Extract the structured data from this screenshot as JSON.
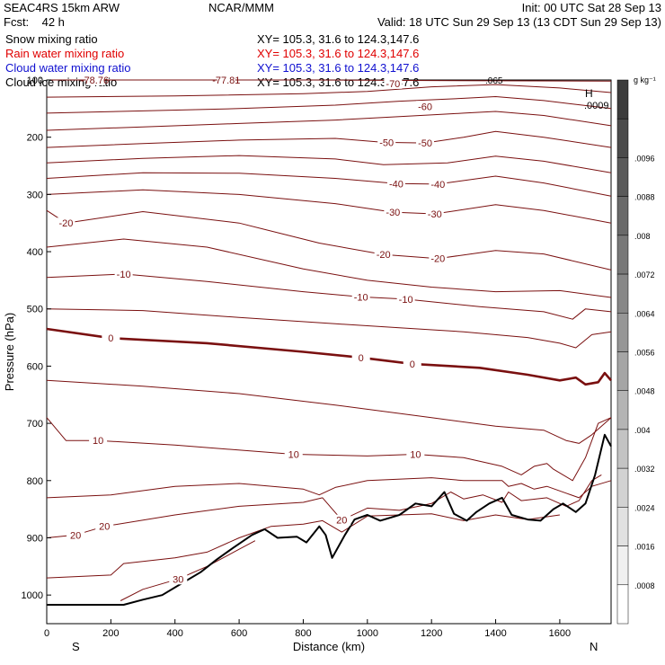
{
  "header": {
    "model": "SEAC4RS 15km ARW",
    "center": "NCAR/MMM",
    "init": "Init: 00 UTC Sat 28 Sep 13",
    "fcst": "Fcst:    42 h",
    "valid": "Valid: 18 UTC Sun 29 Sep 13 (13 CDT Sun 29 Sep 13)",
    "fields": [
      {
        "name": "Snow mixing ratio",
        "color": "#000000",
        "xy": "XY= 105.3, 31.6 to 124.3,147.6"
      },
      {
        "name": "Rain water mixing ratio",
        "color": "#e00000",
        "xy": "XY= 105.3, 31.6 to 124.3,147.6"
      },
      {
        "name": "Cloud water mixing ratio",
        "color": "#1010d0",
        "xy": "XY= 105.3, 31.6 to 124.3,147.6"
      },
      {
        "name": "Cloud ice mixing ratio",
        "color": "#000000",
        "xy": "XY= 105.3, 31.6 to 124.3,147.6"
      }
    ]
  },
  "colors": {
    "isotherm": "#7a1010",
    "terrain": "#000000",
    "frame": "#000000"
  },
  "chart_data": {
    "type": "line",
    "xlabel": "Distance (km)",
    "ylabel": "Pressure (hPa)",
    "xlim": [
      0,
      1760
    ],
    "ylim": [
      1050,
      100
    ],
    "xticks": [
      "0",
      "200",
      "400",
      "600",
      "800",
      "1000",
      "1200",
      "1400",
      "1600"
    ],
    "yticks": [
      "100",
      "200",
      "300",
      "400",
      "500",
      "600",
      "700",
      "800",
      "900",
      "1000"
    ],
    "side_labels": {
      "left": "S",
      "right": "N"
    },
    "isotherm_labels": [
      {
        "text": "-78.76",
        "x": 150,
        "p": 100
      },
      {
        "text": "-77.81",
        "x": 560,
        "p": 100
      },
      {
        "text": "-70",
        "x": 1080,
        "p": 106
      },
      {
        "text": "-60",
        "x": 1180,
        "p": 146
      },
      {
        "text": "-50",
        "x": 1060,
        "p": 209
      },
      {
        "text": "-50",
        "x": 1180,
        "p": 210
      },
      {
        "text": "-40",
        "x": 1090,
        "p": 281
      },
      {
        "text": "-40",
        "x": 1220,
        "p": 282
      },
      {
        "text": "-30",
        "x": 1080,
        "p": 331
      },
      {
        "text": "-30",
        "x": 1210,
        "p": 334
      },
      {
        "text": "-20",
        "x": 60,
        "p": 350
      },
      {
        "text": "-20",
        "x": 1050,
        "p": 405
      },
      {
        "text": "-20",
        "x": 1220,
        "p": 412
      },
      {
        "text": "-10",
        "x": 240,
        "p": 439
      },
      {
        "text": "-10",
        "x": 980,
        "p": 479
      },
      {
        "text": "-10",
        "x": 1120,
        "p": 483
      },
      {
        "text": "0",
        "x": 200,
        "p": 551
      },
      {
        "text": "0",
        "x": 980,
        "p": 585
      },
      {
        "text": "0",
        "x": 1140,
        "p": 596
      },
      {
        "text": "10",
        "x": 160,
        "p": 730
      },
      {
        "text": "10",
        "x": 770,
        "p": 754
      },
      {
        "text": "10",
        "x": 1150,
        "p": 754
      },
      {
        "text": "20",
        "x": 90,
        "p": 895
      },
      {
        "text": "20",
        "x": 180,
        "p": 880
      },
      {
        "text": "20",
        "x": 920,
        "p": 869
      },
      {
        "text": "30",
        "x": 410,
        "p": 972
      }
    ],
    "top_right_label": "H",
    "top_right_value": ".0009",
    "top_overflow_label": ".065",
    "colorbar": {
      "unit": "g kg⁻¹",
      "labels": [
        ".0096",
        ".0088",
        ".008",
        ".0072",
        ".0064",
        ".0056",
        ".0048",
        ".004",
        ".0032",
        ".0024",
        ".0016",
        ".0008"
      ]
    },
    "series": [
      {
        "values": [
          [
            0,
            100
          ],
          [
            400,
            100
          ],
          [
            800,
            100
          ],
          [
            1200,
            101
          ],
          [
            1760,
            102
          ]
        ]
      },
      {
        "values": [
          [
            0,
            130
          ],
          [
            400,
            128
          ],
          [
            800,
            124
          ],
          [
            1000,
            120
          ],
          [
            1200,
            112
          ],
          [
            1400,
            108
          ],
          [
            1600,
            114
          ],
          [
            1760,
            122
          ]
        ]
      },
      {
        "values": [
          [
            0,
            158
          ],
          [
            300,
            154
          ],
          [
            600,
            150
          ],
          [
            900,
            144
          ],
          [
            1100,
            137
          ],
          [
            1300,
            132
          ],
          [
            1400,
            129
          ],
          [
            1550,
            136
          ],
          [
            1760,
            150
          ]
        ]
      },
      {
        "values": [
          [
            0,
            188
          ],
          [
            300,
            182
          ],
          [
            600,
            176
          ],
          [
            900,
            170
          ],
          [
            1100,
            164
          ],
          [
            1300,
            158
          ],
          [
            1400,
            155
          ],
          [
            1550,
            162
          ],
          [
            1760,
            180
          ]
        ]
      },
      {
        "values": [
          [
            0,
            218
          ],
          [
            300,
            211
          ],
          [
            600,
            205
          ],
          [
            900,
            202
          ],
          [
            1050,
            209
          ],
          [
            1180,
            210
          ],
          [
            1300,
            200
          ],
          [
            1400,
            190
          ],
          [
            1550,
            200
          ],
          [
            1760,
            218
          ]
        ]
      },
      {
        "values": [
          [
            0,
            245
          ],
          [
            300,
            237
          ],
          [
            600,
            232
          ],
          [
            900,
            238
          ],
          [
            1050,
            248
          ],
          [
            1250,
            245
          ],
          [
            1400,
            233
          ],
          [
            1550,
            242
          ],
          [
            1760,
            262
          ]
        ]
      },
      {
        "values": [
          [
            0,
            272
          ],
          [
            300,
            262
          ],
          [
            600,
            263
          ],
          [
            900,
            272
          ],
          [
            1090,
            281
          ],
          [
            1220,
            282
          ],
          [
            1400,
            268
          ],
          [
            1550,
            280
          ],
          [
            1760,
            303
          ]
        ]
      },
      {
        "values": [
          [
            0,
            300
          ],
          [
            300,
            292
          ],
          [
            600,
            300
          ],
          [
            900,
            316
          ],
          [
            1080,
            331
          ],
          [
            1210,
            334
          ],
          [
            1400,
            318
          ],
          [
            1550,
            328
          ],
          [
            1760,
            350
          ]
        ]
      },
      {
        "values": [
          [
            0,
            328
          ],
          [
            60,
            350
          ],
          [
            300,
            330
          ],
          [
            600,
            350
          ],
          [
            850,
            385
          ],
          [
            1050,
            405
          ],
          [
            1220,
            412
          ],
          [
            1400,
            398
          ],
          [
            1550,
            404
          ],
          [
            1760,
            432
          ]
        ]
      },
      {
        "values": [
          [
            0,
            392
          ],
          [
            240,
            378
          ],
          [
            500,
            392
          ],
          [
            800,
            430
          ],
          [
            1000,
            450
          ],
          [
            1200,
            462
          ],
          [
            1400,
            470
          ],
          [
            1600,
            468
          ],
          [
            1760,
            480
          ]
        ]
      },
      {
        "values": [
          [
            0,
            445
          ],
          [
            240,
            439
          ],
          [
            500,
            452
          ],
          [
            800,
            470
          ],
          [
            980,
            479
          ],
          [
            1120,
            483
          ],
          [
            1350,
            496
          ],
          [
            1550,
            505
          ],
          [
            1640,
            518
          ],
          [
            1680,
            500
          ],
          [
            1760,
            505
          ]
        ]
      },
      {
        "values": [
          [
            0,
            500
          ],
          [
            300,
            503
          ],
          [
            600,
            515
          ],
          [
            900,
            526
          ],
          [
            1100,
            533
          ],
          [
            1300,
            540
          ],
          [
            1500,
            550
          ],
          [
            1600,
            560
          ],
          [
            1650,
            568
          ],
          [
            1700,
            545
          ],
          [
            1760,
            540
          ]
        ]
      },
      {
        "values": [
          [
            0,
            535
          ],
          [
            200,
            551
          ],
          [
            500,
            560
          ],
          [
            800,
            575
          ],
          [
            980,
            585
          ],
          [
            1140,
            596
          ],
          [
            1350,
            603
          ],
          [
            1500,
            615
          ],
          [
            1600,
            625
          ],
          [
            1650,
            620
          ],
          [
            1680,
            632
          ],
          [
            1720,
            628
          ],
          [
            1740,
            612
          ],
          [
            1760,
            625
          ]
        ]
      },
      {
        "values": [
          [
            0,
            625
          ],
          [
            300,
            635
          ],
          [
            600,
            648
          ],
          [
            900,
            668
          ],
          [
            1200,
            690
          ],
          [
            1400,
            705
          ],
          [
            1550,
            712
          ],
          [
            1620,
            730
          ],
          [
            1660,
            735
          ],
          [
            1700,
            720
          ],
          [
            1740,
            700
          ],
          [
            1760,
            690
          ]
        ]
      },
      {
        "values": [
          [
            0,
            690
          ],
          [
            60,
            730
          ],
          [
            160,
            730
          ],
          [
            400,
            738
          ],
          [
            770,
            754
          ],
          [
            1000,
            757
          ],
          [
            1150,
            754
          ],
          [
            1300,
            760
          ],
          [
            1420,
            775
          ],
          [
            1480,
            790
          ],
          [
            1520,
            775
          ],
          [
            1560,
            770
          ],
          [
            1580,
            780
          ],
          [
            1640,
            800
          ],
          [
            1680,
            760
          ],
          [
            1720,
            700
          ],
          [
            1760,
            690
          ]
        ]
      },
      {
        "values": [
          [
            0,
            830
          ],
          [
            200,
            825
          ],
          [
            400,
            810
          ],
          [
            600,
            805
          ],
          [
            800,
            815
          ],
          [
            850,
            825
          ],
          [
            900,
            812
          ],
          [
            1000,
            800
          ],
          [
            1200,
            795
          ],
          [
            1300,
            800
          ],
          [
            1420,
            800
          ],
          [
            1440,
            810
          ],
          [
            1480,
            805
          ],
          [
            1520,
            815
          ],
          [
            1560,
            810
          ],
          [
            1620,
            822
          ],
          [
            1660,
            830
          ],
          [
            1700,
            810
          ],
          [
            1760,
            800
          ]
        ]
      },
      {
        "values": [
          [
            0,
            900
          ],
          [
            90,
            895
          ],
          [
            180,
            880
          ],
          [
            400,
            860
          ],
          [
            600,
            845
          ],
          [
            800,
            838
          ],
          [
            860,
            830
          ],
          [
            920,
            869
          ],
          [
            1000,
            848
          ],
          [
            1100,
            852
          ],
          [
            1200,
            840
          ],
          [
            1260,
            820
          ],
          [
            1300,
            832
          ],
          [
            1360,
            825
          ],
          [
            1420,
            838
          ],
          [
            1440,
            820
          ],
          [
            1480,
            835
          ],
          [
            1560,
            830
          ],
          [
            1620,
            845
          ],
          [
            1660,
            835
          ],
          [
            1700,
            800
          ],
          [
            1730,
            790
          ]
        ]
      },
      {
        "values": [
          [
            0,
            970
          ],
          [
            200,
            965
          ],
          [
            240,
            945
          ],
          [
            400,
            935
          ],
          [
            500,
            925
          ],
          [
            600,
            900
          ],
          [
            700,
            880
          ],
          [
            800,
            876
          ],
          [
            860,
            870
          ],
          [
            920,
            890
          ],
          [
            1000,
            862
          ],
          [
            1200,
            858
          ],
          [
            1300,
            870
          ],
          [
            1400,
            860
          ],
          [
            1500,
            868
          ],
          [
            1600,
            860
          ]
        ]
      },
      {
        "values": [
          [
            230,
            1010
          ],
          [
            300,
            990
          ],
          [
            410,
            972
          ],
          [
            500,
            950
          ],
          [
            600,
            920
          ],
          [
            650,
            905
          ]
        ]
      },
      {
        "values": [
          [
            0,
            1017
          ],
          [
            240,
            1017
          ],
          [
            300,
            1008
          ],
          [
            360,
            1000
          ],
          [
            420,
            980
          ],
          [
            480,
            960
          ],
          [
            530,
            938
          ],
          [
            580,
            918
          ],
          [
            640,
            895
          ],
          [
            680,
            885
          ],
          [
            720,
            900
          ],
          [
            780,
            898
          ],
          [
            810,
            908
          ],
          [
            850,
            880
          ],
          [
            870,
            895
          ],
          [
            890,
            935
          ],
          [
            930,
            895
          ],
          [
            960,
            868
          ],
          [
            1000,
            860
          ],
          [
            1040,
            870
          ],
          [
            1100,
            860
          ],
          [
            1150,
            840
          ],
          [
            1200,
            845
          ],
          [
            1240,
            820
          ],
          [
            1270,
            858
          ],
          [
            1310,
            870
          ],
          [
            1340,
            855
          ],
          [
            1380,
            840
          ],
          [
            1420,
            830
          ],
          [
            1450,
            860
          ],
          [
            1500,
            868
          ],
          [
            1540,
            870
          ],
          [
            1580,
            850
          ],
          [
            1610,
            840
          ],
          [
            1650,
            855
          ],
          [
            1680,
            840
          ],
          [
            1710,
            790
          ],
          [
            1740,
            720
          ],
          [
            1760,
            740
          ]
        ]
      }
    ]
  }
}
